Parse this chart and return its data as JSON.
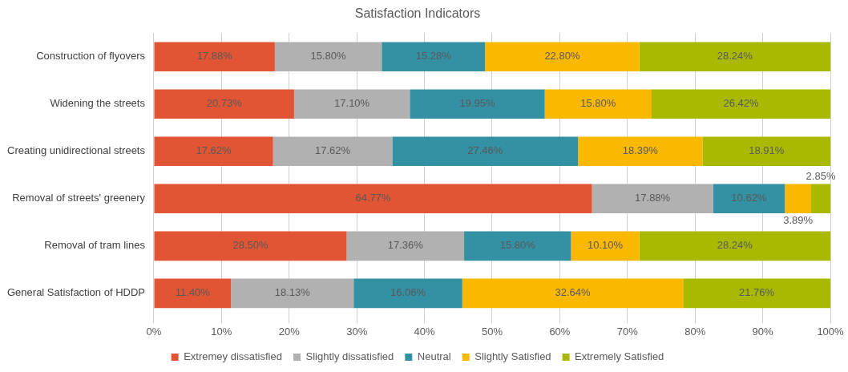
{
  "chart_data": {
    "type": "bar",
    "orientation": "horizontal",
    "stacked": true,
    "title": "Satisfaction Indicators",
    "categories": [
      "Construction of flyovers",
      "Widening the streets",
      "Creating unidirectional streets",
      "Removal of streets' greenery",
      "Removal of tram lines",
      "General Satisfaction of HDDP"
    ],
    "series": [
      {
        "name": "Extremey dissatisfied",
        "color": "#e15535",
        "values": [
          17.88,
          20.73,
          17.62,
          64.77,
          28.5,
          11.4
        ],
        "value_labels": [
          "17.88%",
          "20.73%",
          "17.62%",
          "64.77%",
          "28.50%",
          "11.40%"
        ]
      },
      {
        "name": "Slightly dissatisfied",
        "color": "#b1b1b1",
        "values": [
          15.8,
          17.1,
          17.62,
          17.88,
          17.36,
          18.13
        ],
        "value_labels": [
          "15.80%",
          "17.10%",
          "17.62%",
          "17.88%",
          "17.36%",
          "18.13%"
        ]
      },
      {
        "name": "Neutral",
        "color": "#3491a4",
        "values": [
          15.28,
          19.95,
          27.46,
          10.62,
          15.8,
          16.06
        ],
        "value_labels": [
          "15.28%",
          "19.95%",
          "27.46%",
          "10.62%",
          "15.80%",
          "16.06%"
        ]
      },
      {
        "name": "Slightly Satisfied",
        "color": "#fbb800",
        "values": [
          22.8,
          15.8,
          18.39,
          3.89,
          10.1,
          32.64
        ],
        "value_labels": [
          "22.80%",
          "15.80%",
          "18.39%",
          "3.89%",
          "10.10%",
          "32.64%"
        ]
      },
      {
        "name": "Extremely Satisfied",
        "color": "#a9b900",
        "values": [
          28.24,
          26.42,
          18.91,
          2.85,
          28.24,
          21.76
        ],
        "value_labels": [
          "28.24%",
          "26.42%",
          "18.91%",
          "2.85%",
          "28.24%",
          "21.76%"
        ]
      }
    ],
    "xlim": [
      0,
      100
    ],
    "xticks": [
      {
        "value": 0,
        "label": "0%"
      },
      {
        "value": 10,
        "label": "10%"
      },
      {
        "value": 20,
        "label": "20%"
      },
      {
        "value": 30,
        "label": "30%"
      },
      {
        "value": 40,
        "label": "40%"
      },
      {
        "value": 50,
        "label": "50%"
      },
      {
        "value": 60,
        "label": "60%"
      },
      {
        "value": 70,
        "label": "70%"
      },
      {
        "value": 80,
        "label": "80%"
      },
      {
        "value": 90,
        "label": "90%"
      },
      {
        "value": 100,
        "label": "100%"
      }
    ],
    "grid": "x",
    "legend": "bottom"
  }
}
